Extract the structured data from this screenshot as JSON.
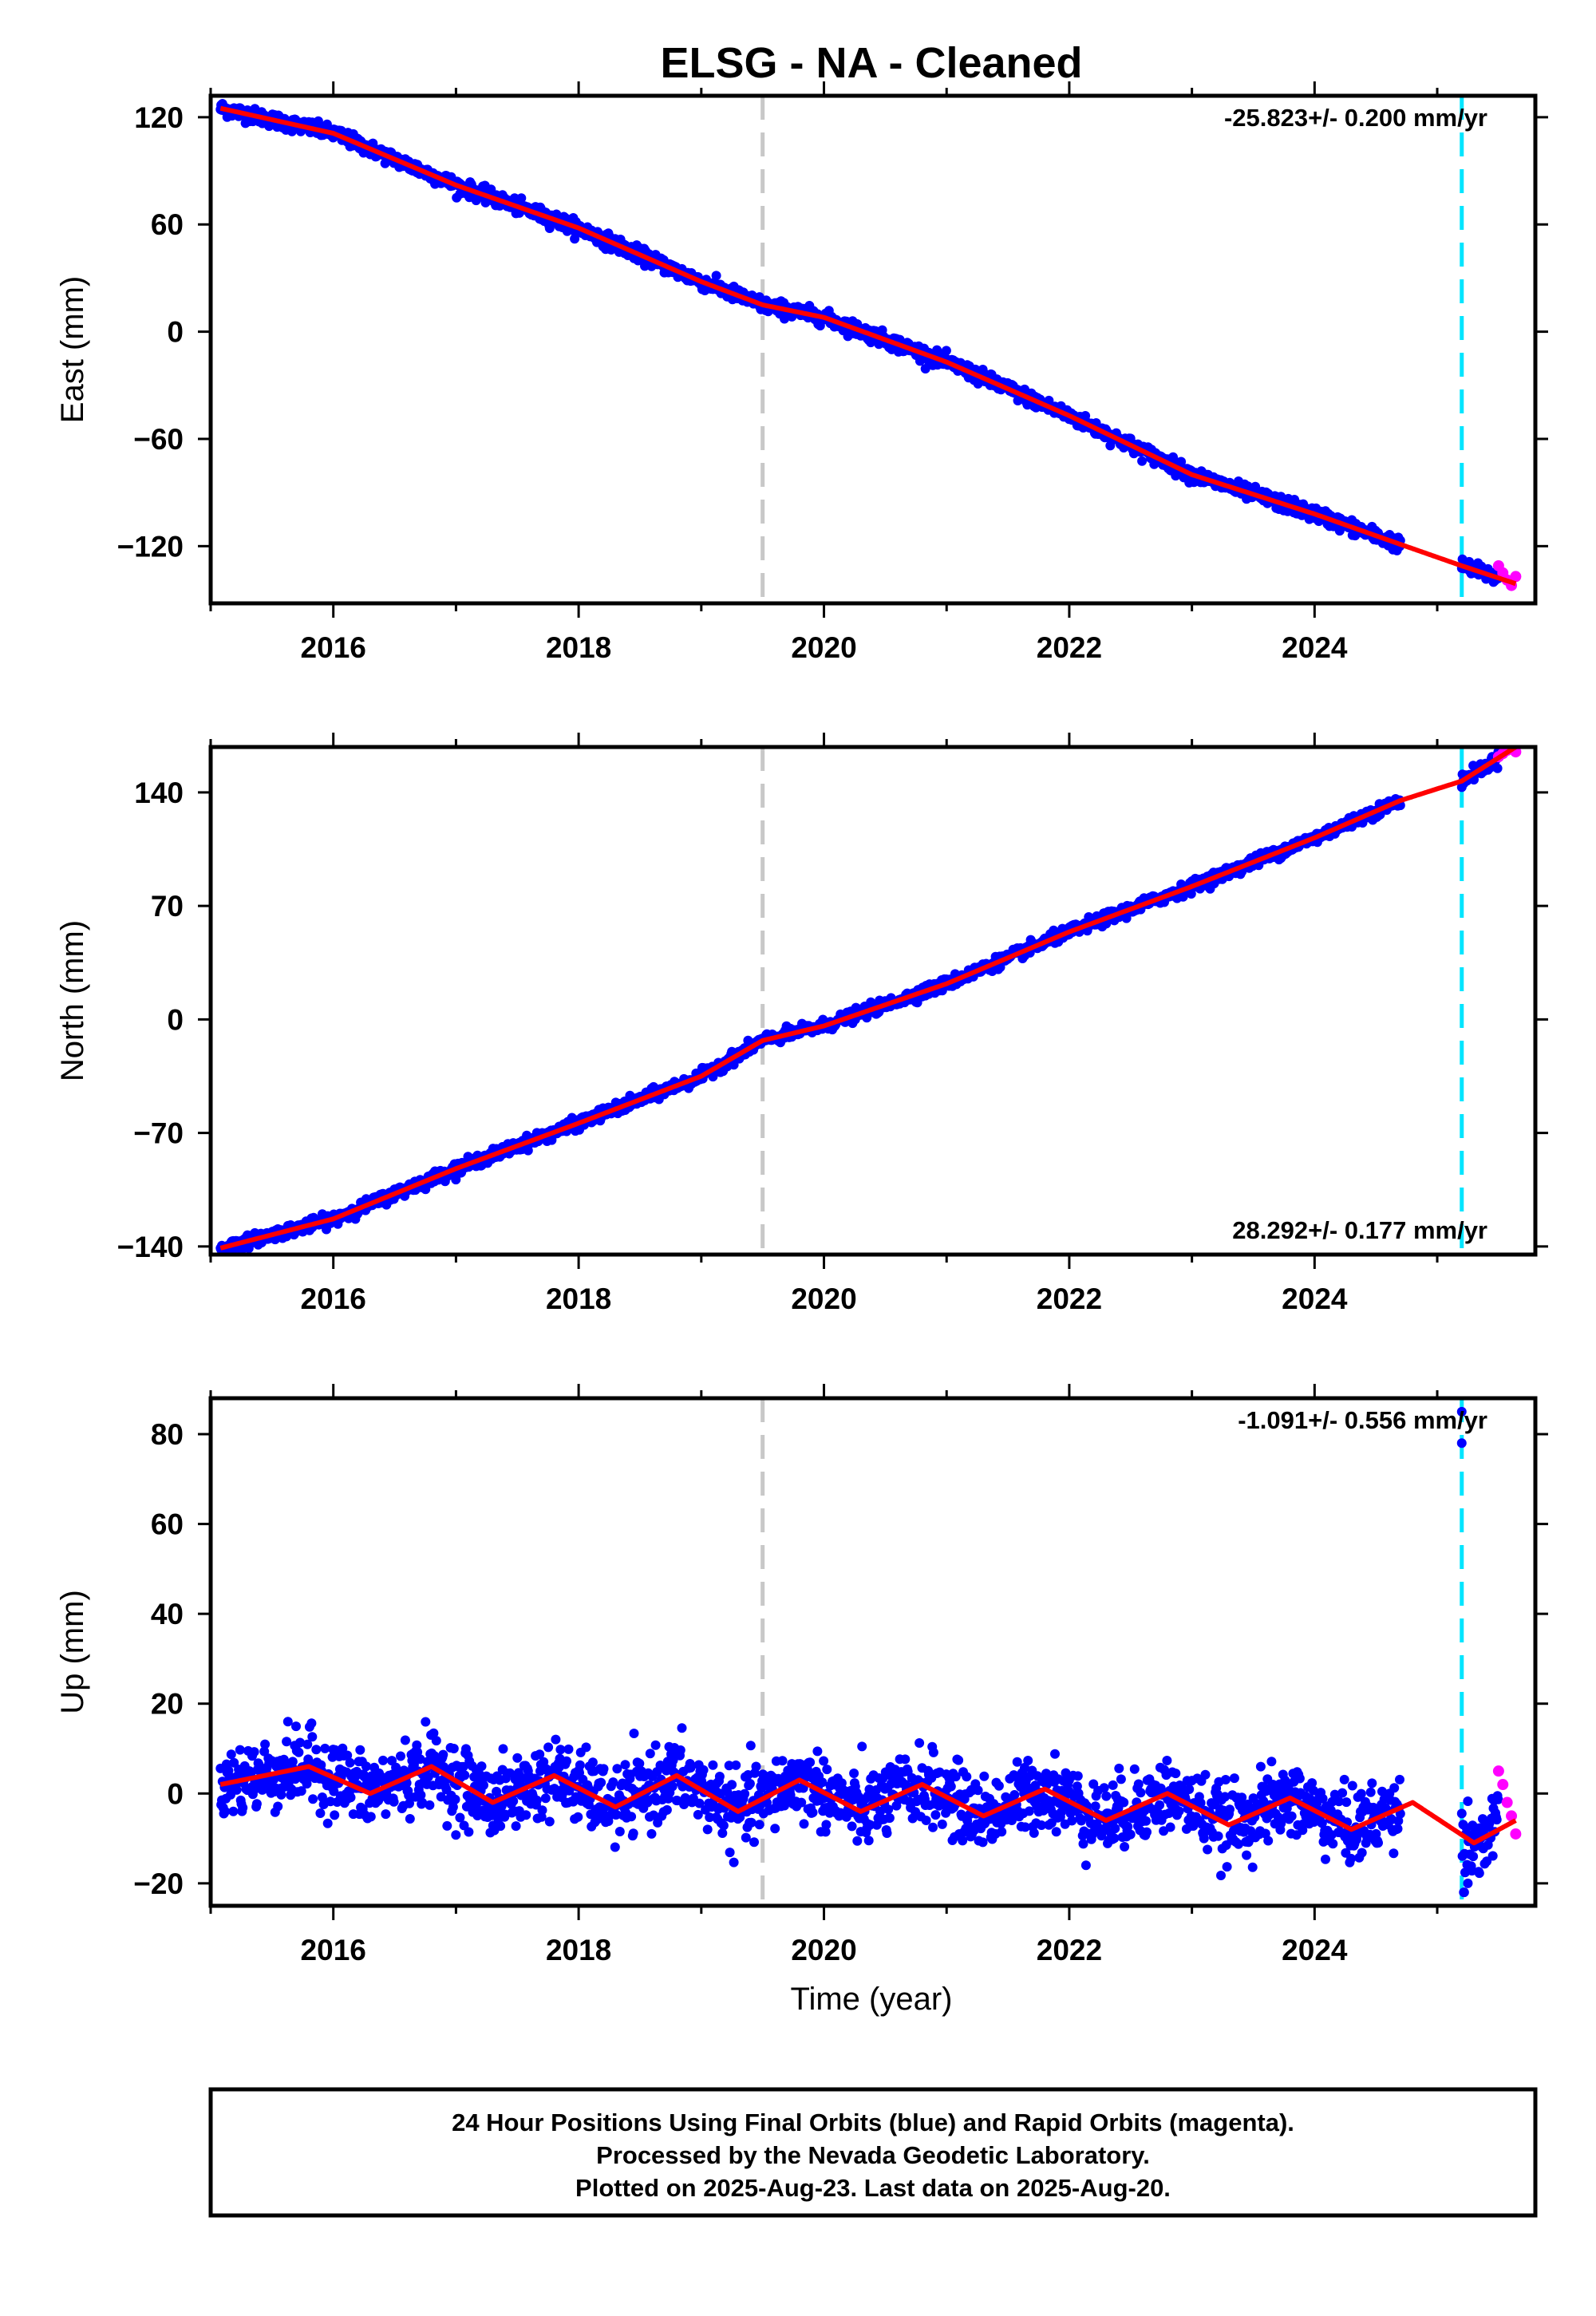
{
  "colors": {
    "final_orbits": "#0000ff",
    "rapid_orbits": "#ff00ff",
    "model_fit": "#ff0000",
    "equipment_change": "#c8c8c8",
    "event_marker": "#00e5ff",
    "frame": "#000000"
  },
  "chart_data": {
    "type": "scatter",
    "title": "ELSG  - NA - Cleaned",
    "xlabel": "Time (year)",
    "xlim": [
      2015.0,
      2025.8
    ],
    "x_ticks": [
      2016,
      2018,
      2020,
      2022,
      2024
    ],
    "x_tick_labels": [
      "2016",
      "2018",
      "2020",
      "2022",
      "2024"
    ],
    "data_start": 2015.08,
    "final_data_end": 2024.7,
    "data_gap": [
      2024.7,
      2025.15
    ],
    "rapid_data_start": 2025.5,
    "rapid_data_end": 2025.64,
    "vertical_markers": [
      {
        "x": 2019.5,
        "style": "dashed",
        "color": "#c8c8c8"
      },
      {
        "x": 2025.2,
        "style": "dashed",
        "color": "#00e5ff"
      }
    ],
    "panels": [
      {
        "component": "East",
        "ylabel": "East (mm)",
        "ylim": [
          -152,
          132
        ],
        "y_ticks": [
          120,
          60,
          0,
          -60,
          -120
        ],
        "y_tick_labels": [
          "120",
          "60",
          "0",
          "−60",
          "−120"
        ],
        "rate_label": "-25.823+/- 0.200 mm/yr",
        "rate_position": "top-right",
        "velocity_mm_per_yr": -25.823,
        "value_at_2015": 127,
        "annual_amplitude_mm": 1.5,
        "noise_mm": 2.0,
        "fit_points": [
          [
            2015.08,
            125
          ],
          [
            2016.0,
            111
          ],
          [
            2017.0,
            82
          ],
          [
            2018.0,
            58
          ],
          [
            2019.0,
            28
          ],
          [
            2019.5,
            15
          ],
          [
            2020.0,
            8
          ],
          [
            2021.0,
            -17
          ],
          [
            2022.0,
            -47
          ],
          [
            2023.0,
            -80
          ],
          [
            2024.0,
            -102
          ],
          [
            2024.7,
            -119
          ],
          [
            2025.2,
            -131
          ],
          [
            2025.64,
            -141
          ]
        ],
        "rapid_values": [
          -131,
          -135,
          -139,
          -142,
          -137
        ]
      },
      {
        "component": "North",
        "ylabel": "North (mm)",
        "ylim": [
          -145,
          168
        ],
        "y_ticks": [
          140,
          70,
          0,
          -70,
          -140
        ],
        "y_tick_labels": [
          "140",
          "70",
          "0",
          "−70",
          "−140"
        ],
        "rate_label": "28.292+/- 0.177 mm/yr",
        "rate_position": "bottom-right",
        "velocity_mm_per_yr": 28.292,
        "value_at_2015": -142,
        "annual_amplitude_mm": 3.0,
        "noise_mm": 1.8,
        "fit_points": [
          [
            2015.08,
            -141
          ],
          [
            2016.0,
            -123
          ],
          [
            2017.0,
            -92
          ],
          [
            2018.0,
            -64
          ],
          [
            2019.0,
            -35
          ],
          [
            2019.5,
            -13
          ],
          [
            2020.0,
            -4
          ],
          [
            2021.0,
            22
          ],
          [
            2022.0,
            54
          ],
          [
            2023.0,
            82
          ],
          [
            2024.0,
            112
          ],
          [
            2024.7,
            135
          ],
          [
            2025.2,
            147
          ],
          [
            2025.64,
            168
          ]
        ],
        "rapid_values": [
          162,
          164,
          166,
          167,
          165
        ]
      },
      {
        "component": "Up",
        "ylabel": "Up (mm)",
        "ylim": [
          -25,
          88
        ],
        "y_ticks": [
          80,
          60,
          40,
          20,
          0,
          -20
        ],
        "y_tick_labels": [
          "80",
          "60",
          "40",
          "20",
          "0",
          "−20"
        ],
        "rate_label": "-1.091+/- 0.556 mm/yr",
        "rate_position": "top-right",
        "velocity_mm_per_yr": -1.091,
        "value_at_2015": 3,
        "annual_amplitude_mm": 4.0,
        "noise_mm": 4.0,
        "fit_points": [
          [
            2015.08,
            2
          ],
          [
            2015.8,
            6
          ],
          [
            2016.3,
            0
          ],
          [
            2016.8,
            6
          ],
          [
            2017.3,
            -2
          ],
          [
            2017.8,
            4
          ],
          [
            2018.3,
            -3
          ],
          [
            2018.8,
            4
          ],
          [
            2019.3,
            -4
          ],
          [
            2019.8,
            3
          ],
          [
            2020.3,
            -4
          ],
          [
            2020.8,
            2
          ],
          [
            2021.3,
            -5
          ],
          [
            2021.8,
            1
          ],
          [
            2022.3,
            -6
          ],
          [
            2022.8,
            0
          ],
          [
            2023.3,
            -7
          ],
          [
            2023.8,
            -1
          ],
          [
            2024.3,
            -8
          ],
          [
            2024.8,
            -2
          ],
          [
            2025.3,
            -11
          ],
          [
            2025.64,
            -6
          ]
        ],
        "rapid_values": [
          5,
          2,
          -2,
          -5,
          -9
        ],
        "outliers": [
          [
            2025.2,
            85
          ],
          [
            2025.2,
            78
          ],
          [
            2025.22,
            -22
          ],
          [
            2025.25,
            -20
          ]
        ]
      }
    ]
  },
  "footer": {
    "line1": "24 Hour Positions Using Final Orbits (blue) and Rapid Orbits (magenta).",
    "line2": "Processed by the Nevada Geodetic Laboratory.",
    "line3": "Plotted on 2025-Aug-23. Last data on 2025-Aug-20."
  }
}
